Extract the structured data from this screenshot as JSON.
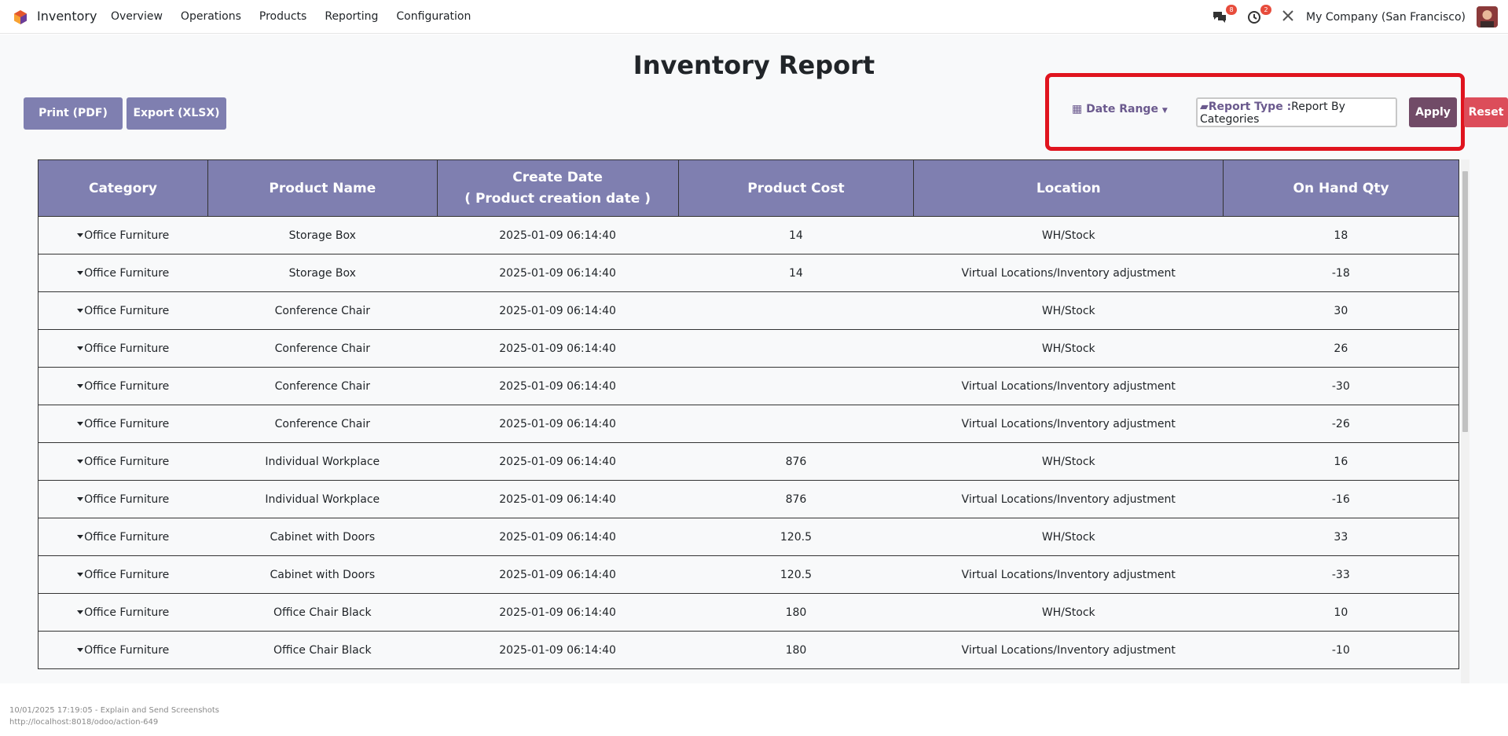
{
  "navbar": {
    "brand": "Inventory",
    "menu": [
      "Overview",
      "Operations",
      "Products",
      "Reporting",
      "Configuration"
    ],
    "messages_badge": "8",
    "activities_badge": "2",
    "company": "My Company (San Francisco)"
  },
  "page": {
    "title": "Inventory Report",
    "print_label": "Print (PDF)",
    "export_label": "Export (XLSX)"
  },
  "filters": {
    "date_range_label": "Date Range",
    "report_type_label": "Report Type :",
    "report_type_value": "Report By Categories",
    "apply_label": "Apply",
    "reset_label": "Reset"
  },
  "table": {
    "headers": {
      "category": "Category",
      "product": "Product Name",
      "create_date_1": "Create Date",
      "create_date_2": "( Product creation date )",
      "cost": "Product Cost",
      "location": "Location",
      "qty": "On Hand Qty"
    },
    "rows": [
      {
        "category": "Office Furniture",
        "product": "Storage Box",
        "date": "2025-01-09 06:14:40",
        "cost": "14",
        "location": "WH/Stock",
        "qty": "18"
      },
      {
        "category": "Office Furniture",
        "product": "Storage Box",
        "date": "2025-01-09 06:14:40",
        "cost": "14",
        "location": "Virtual Locations/Inventory adjustment",
        "qty": "-18"
      },
      {
        "category": "Office Furniture",
        "product": "Conference Chair",
        "date": "2025-01-09 06:14:40",
        "cost": "",
        "location": "WH/Stock",
        "qty": "30"
      },
      {
        "category": "Office Furniture",
        "product": "Conference Chair",
        "date": "2025-01-09 06:14:40",
        "cost": "",
        "location": "WH/Stock",
        "qty": "26"
      },
      {
        "category": "Office Furniture",
        "product": "Conference Chair",
        "date": "2025-01-09 06:14:40",
        "cost": "",
        "location": "Virtual Locations/Inventory adjustment",
        "qty": "-30"
      },
      {
        "category": "Office Furniture",
        "product": "Conference Chair",
        "date": "2025-01-09 06:14:40",
        "cost": "",
        "location": "Virtual Locations/Inventory adjustment",
        "qty": "-26"
      },
      {
        "category": "Office Furniture",
        "product": "Individual Workplace",
        "date": "2025-01-09 06:14:40",
        "cost": "876",
        "location": "WH/Stock",
        "qty": "16"
      },
      {
        "category": "Office Furniture",
        "product": "Individual Workplace",
        "date": "2025-01-09 06:14:40",
        "cost": "876",
        "location": "Virtual Locations/Inventory adjustment",
        "qty": "-16"
      },
      {
        "category": "Office Furniture",
        "product": "Cabinet with Doors",
        "date": "2025-01-09 06:14:40",
        "cost": "120.5",
        "location": "WH/Stock",
        "qty": "33"
      },
      {
        "category": "Office Furniture",
        "product": "Cabinet with Doors",
        "date": "2025-01-09 06:14:40",
        "cost": "120.5",
        "location": "Virtual Locations/Inventory adjustment",
        "qty": "-33"
      },
      {
        "category": "Office Furniture",
        "product": "Office Chair Black",
        "date": "2025-01-09 06:14:40",
        "cost": "180",
        "location": "WH/Stock",
        "qty": "10"
      },
      {
        "category": "Office Furniture",
        "product": "Office Chair Black",
        "date": "2025-01-09 06:14:40",
        "cost": "180",
        "location": "Virtual Locations/Inventory adjustment",
        "qty": "-10"
      }
    ]
  },
  "footer": {
    "line1": "10/01/2025 17:19:05 - Explain and Send Screenshots",
    "line2": "http://localhost:8018/odoo/action-649"
  }
}
